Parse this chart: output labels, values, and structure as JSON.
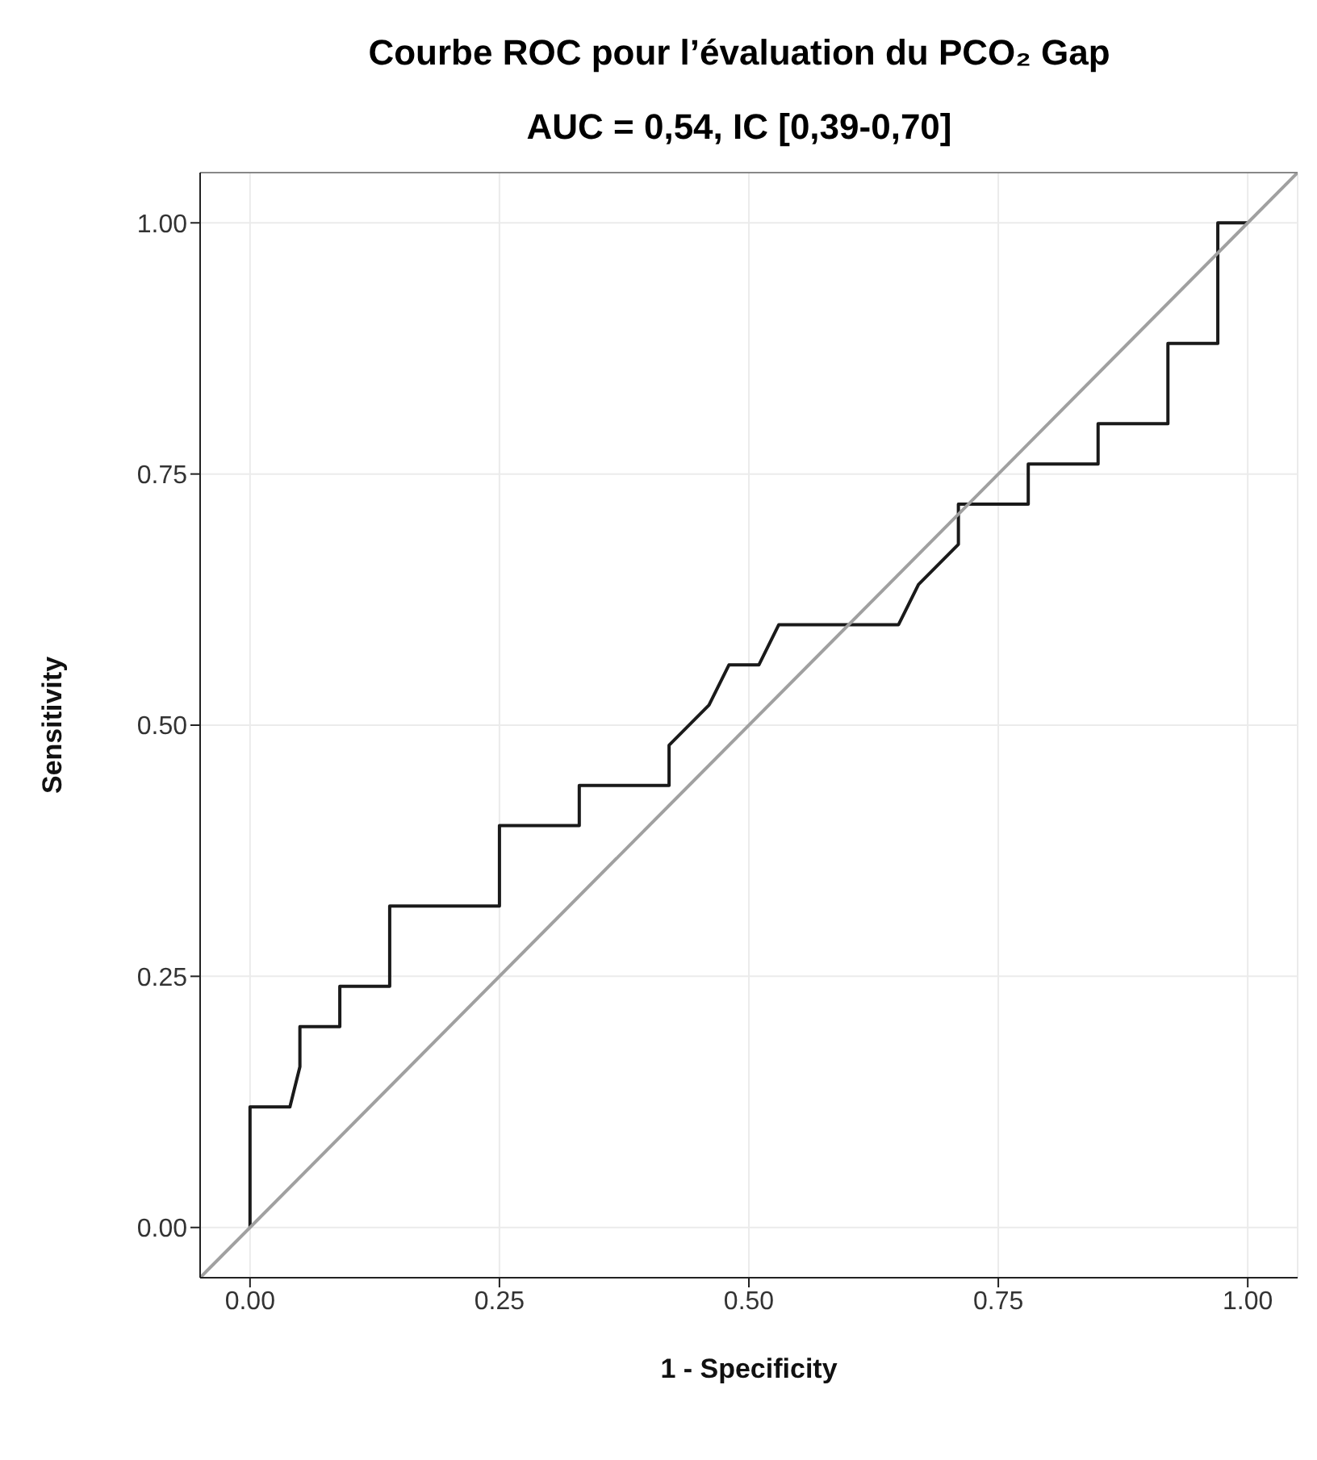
{
  "chart_data": {
    "type": "line",
    "title": "Courbe ROC pour l’évaluation du PCO₂ Gap",
    "subtitle": "AUC = 0,54, IC [0,39-0,70]",
    "xlabel": "1 - Specificity",
    "ylabel": "Sensitivity",
    "xlim": [
      -0.05,
      1.05
    ],
    "ylim": [
      -0.05,
      1.05
    ],
    "xticks": [
      {
        "value": 0,
        "label": "0.00"
      },
      {
        "value": 0.25,
        "label": "0.25"
      },
      {
        "value": 0.5,
        "label": "0.50"
      },
      {
        "value": 0.75,
        "label": "0.75"
      },
      {
        "value": 1,
        "label": "1.00"
      }
    ],
    "yticks": [
      {
        "value": 0,
        "label": "0.00"
      },
      {
        "value": 0.25,
        "label": "0.25"
      },
      {
        "value": 0.5,
        "label": "0.50"
      },
      {
        "value": 0.75,
        "label": "0.75"
      },
      {
        "value": 1,
        "label": "1.00"
      }
    ],
    "grid": true,
    "marker": "none",
    "line_style": "solid",
    "series": [
      {
        "color": "#1a1a1a",
        "x": [
          0,
          0,
          0.04,
          0.05,
          0.05,
          0.09,
          0.09,
          0.14,
          0.14,
          0.25,
          0.25,
          0.33,
          0.33,
          0.42,
          0.42,
          0.46,
          0.48,
          0.51,
          0.53,
          0.65,
          0.67,
          0.71,
          0.71,
          0.78,
          0.78,
          0.85,
          0.85,
          0.92,
          0.92,
          0.97,
          0.97,
          1
        ],
        "values": [
          0,
          0.12,
          0.12,
          0.16,
          0.2,
          0.2,
          0.24,
          0.24,
          0.32,
          0.32,
          0.4,
          0.4,
          0.44,
          0.44,
          0.48,
          0.52,
          0.56,
          0.56,
          0.6,
          0.6,
          0.64,
          0.68,
          0.72,
          0.72,
          0.76,
          0.76,
          0.8,
          0.8,
          0.88,
          0.88,
          1,
          1
        ]
      },
      {
        "color": "#a0a0a0",
        "x": [
          -0.05,
          1.05
        ],
        "values": [
          -0.05,
          1.05
        ]
      }
    ]
  }
}
